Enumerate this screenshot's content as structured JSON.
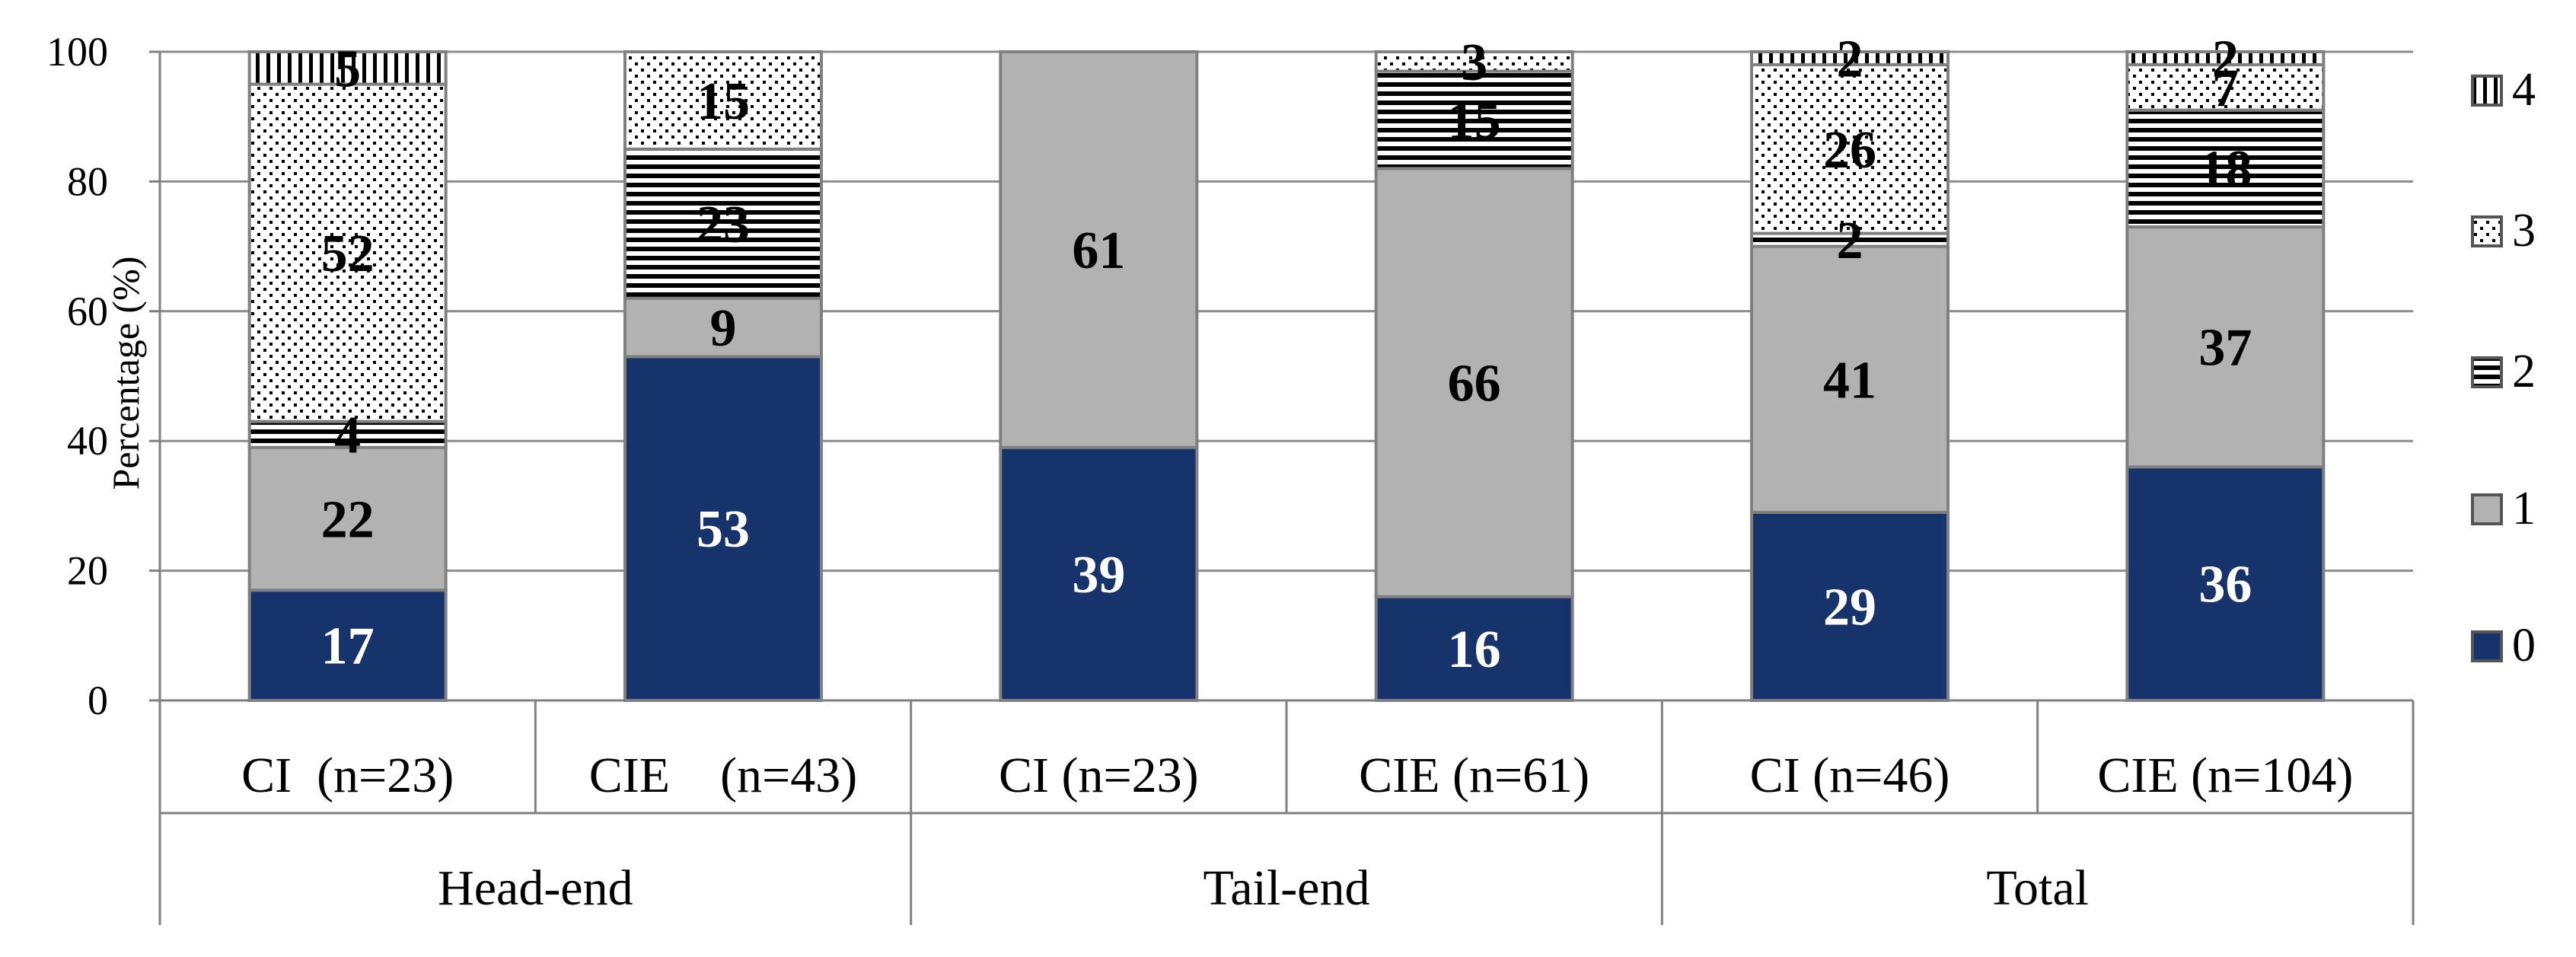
{
  "chart_data": {
    "type": "bar",
    "stacked": true,
    "ylabel": "Percentage (%)",
    "ylim": [
      0,
      100
    ],
    "yticks": [
      0,
      20,
      40,
      60,
      80,
      100
    ],
    "grid": "horizontal",
    "legend_position": "right",
    "groups": [
      {
        "label": "Head-end",
        "categories": [
          "CI  (n=23)",
          "CIE    (n=43)"
        ]
      },
      {
        "label": "Tail-end",
        "categories": [
          "CI (n=23)",
          "CIE (n=61)"
        ]
      },
      {
        "label": "Total",
        "categories": [
          "CI (n=46)",
          "CIE (n=104)"
        ]
      }
    ],
    "categories": [
      "CI  (n=23)",
      "CIE    (n=43)",
      "CI (n=23)",
      "CIE (n=61)",
      "CI (n=46)",
      "CIE (n=104)"
    ],
    "series": [
      {
        "name": "0",
        "color": "#16336b",
        "pattern": "solid",
        "values": [
          17,
          53,
          39,
          16,
          29,
          36
        ],
        "labels": [
          "17",
          "53",
          "39",
          "16",
          "29",
          "36"
        ]
      },
      {
        "name": "1",
        "color": "#b2b2b2",
        "pattern": "solid",
        "values": [
          22,
          9,
          61,
          66,
          41,
          37
        ],
        "labels": [
          "22",
          "9",
          "61",
          "66",
          "41",
          "37"
        ]
      },
      {
        "name": "2",
        "color": "#000000",
        "pattern": "horizontal-lines",
        "values": [
          4,
          23,
          0,
          15,
          2,
          18
        ],
        "labels": [
          "4",
          "23",
          "",
          "15",
          "2",
          "18"
        ]
      },
      {
        "name": "3",
        "color": "#000000",
        "pattern": "dots",
        "values": [
          52,
          15,
          0,
          3,
          26,
          7
        ],
        "labels": [
          "52",
          "15",
          "",
          "3",
          "26",
          "7"
        ]
      },
      {
        "name": "4",
        "color": "#000000",
        "pattern": "vertical-lines",
        "values": [
          5,
          0,
          0,
          0,
          2,
          2
        ],
        "labels": [
          "5",
          "",
          "",
          "",
          "2",
          "2"
        ]
      }
    ],
    "yticklabels": [
      "0",
      "20",
      "40",
      "60",
      "80",
      "100"
    ],
    "legend": [
      "4",
      "3",
      "2",
      "1",
      "0"
    ]
  }
}
